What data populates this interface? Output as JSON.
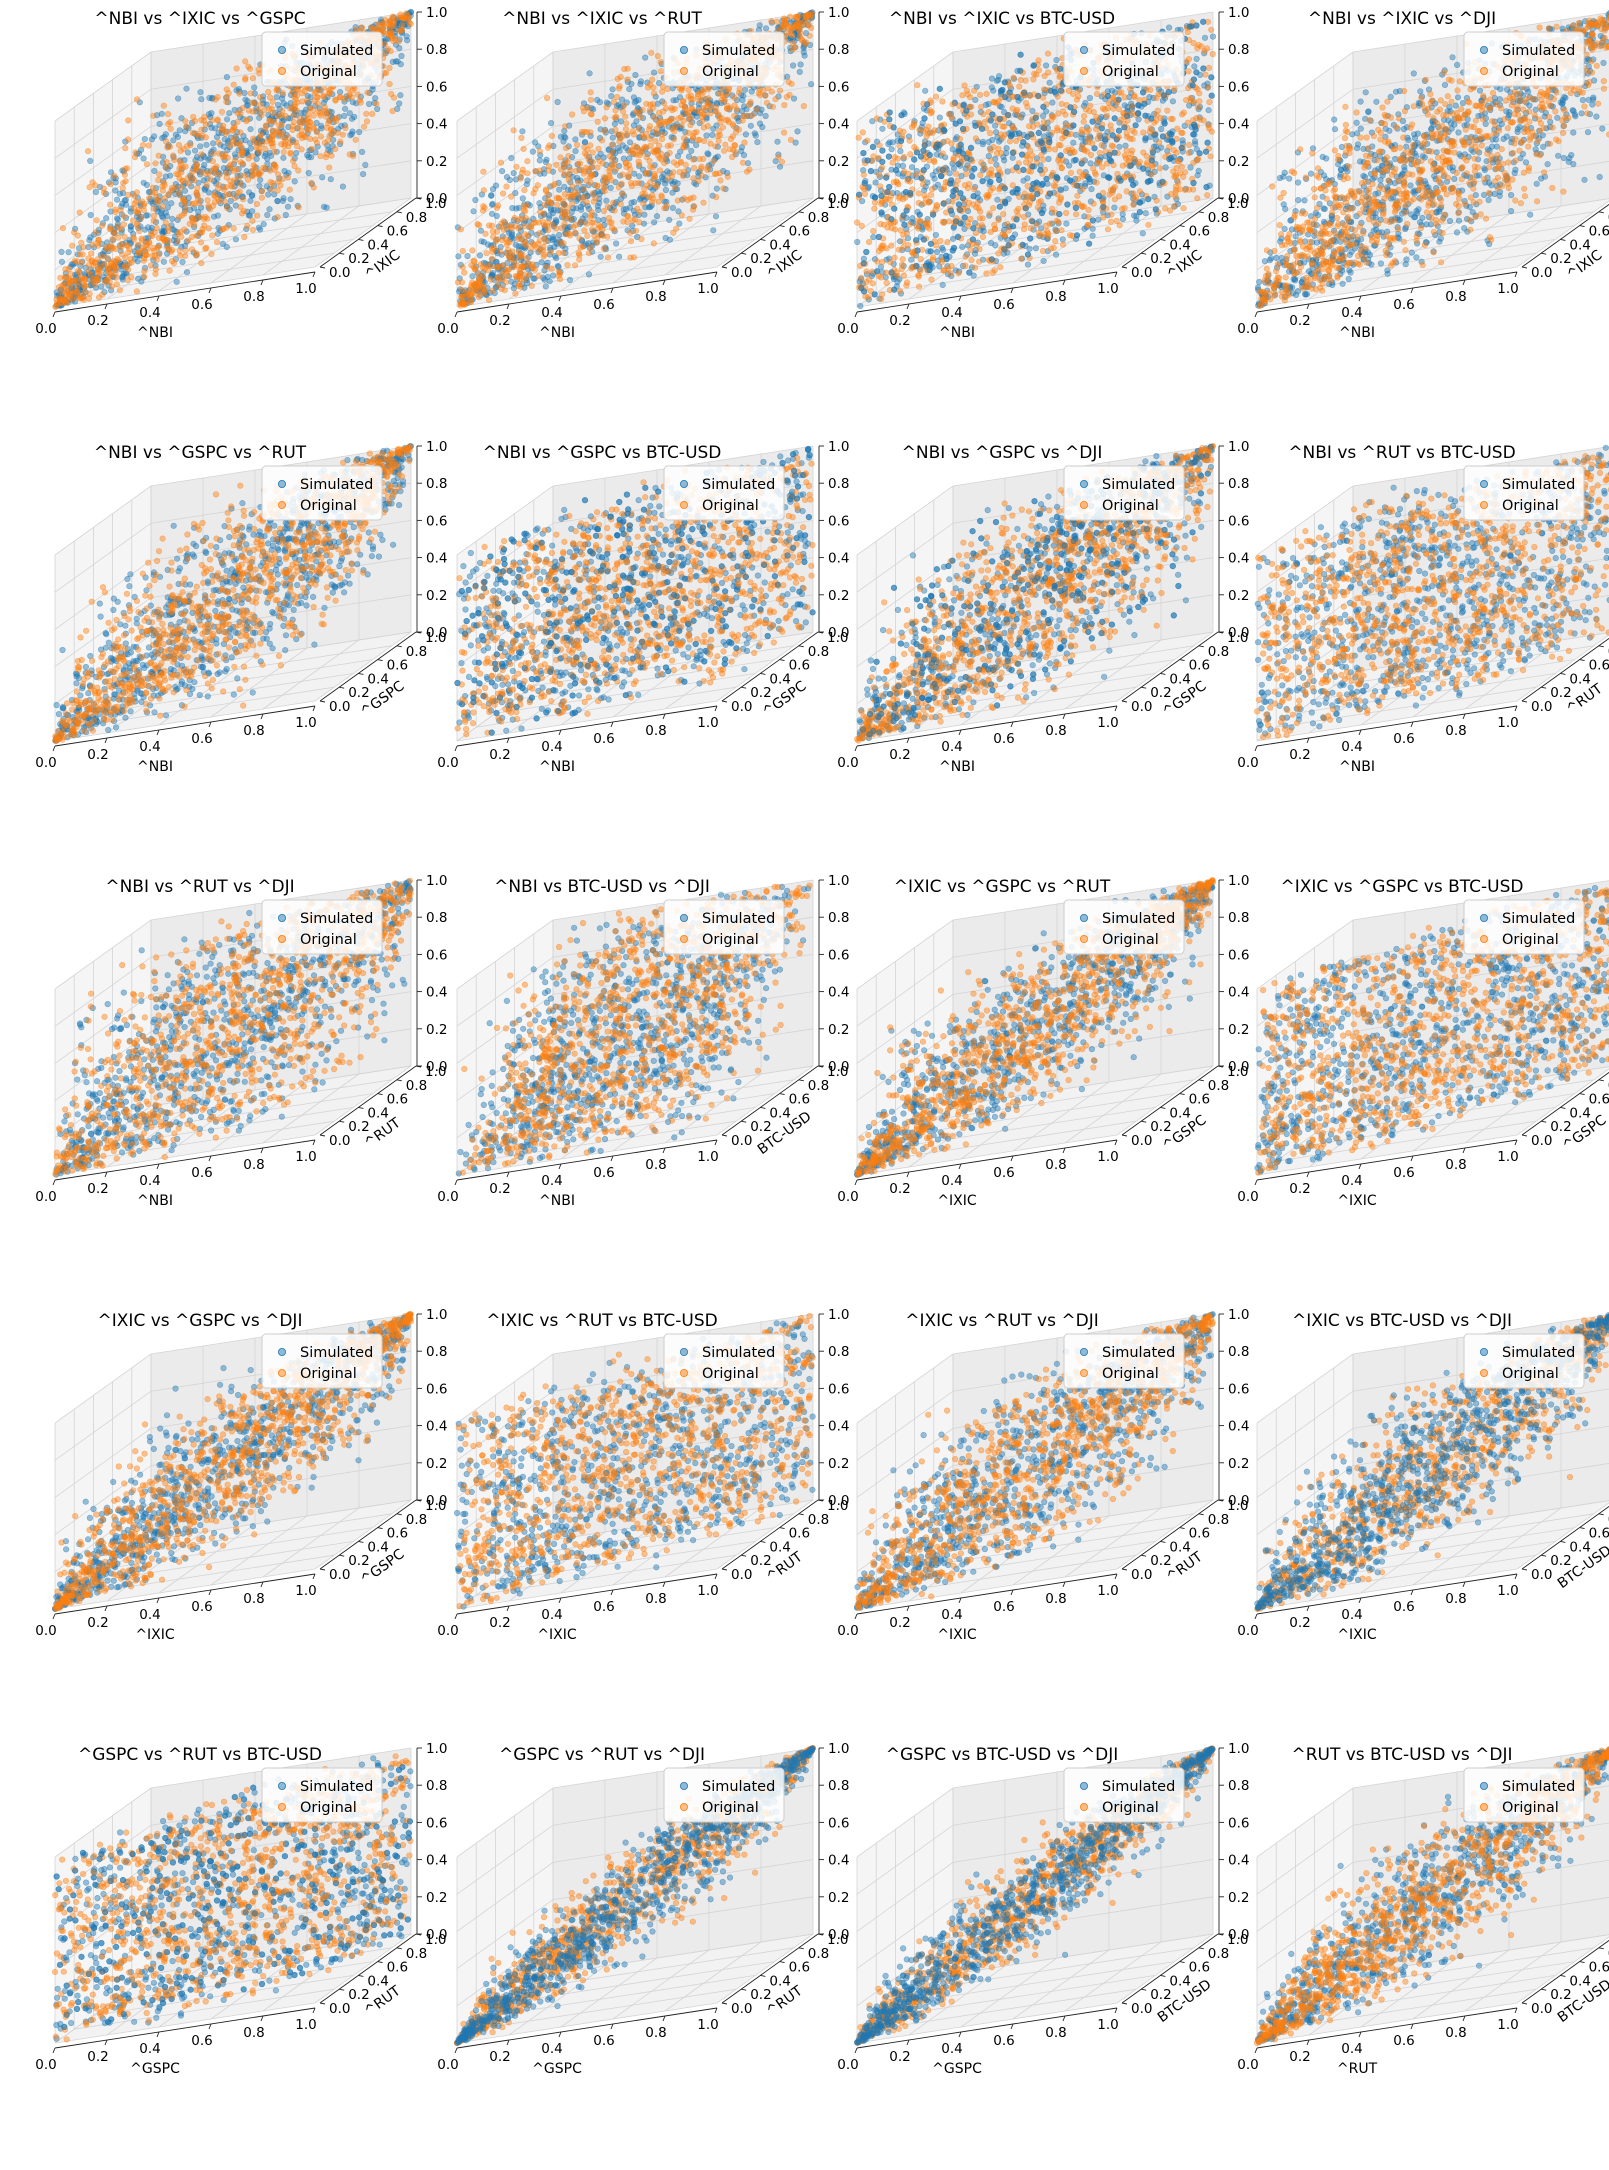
{
  "figure": {
    "legend": {
      "placement": "top-right",
      "entries": [
        "Simulated",
        "Original"
      ]
    },
    "colors": {
      "simulated": "#1f77b4",
      "original": "#ff7f0e"
    },
    "tick_labels": {
      "x": [
        "0.0",
        "0.2",
        "0.4",
        "0.6",
        "0.8",
        "1.0"
      ],
      "y": [
        "0.0",
        "0.2",
        "0.4",
        "0.6",
        "0.8",
        "1.0"
      ],
      "z": [
        "0.0",
        "0.2",
        "0.4",
        "0.6",
        "0.8",
        "1.0"
      ]
    }
  },
  "chart_data": [
    {
      "type": "scatter",
      "title": "^NBI vs ^IXIC vs ^GSPC",
      "xlabel": "^NBI",
      "ylabel": "^IXIC",
      "zlabel": "",
      "xlim": [
        0,
        1
      ],
      "ylim": [
        0,
        1
      ],
      "zlim": [
        0,
        1
      ],
      "series": [
        {
          "name": "Simulated"
        },
        {
          "name": "Original"
        }
      ],
      "dependence": [
        0.8,
        0.8
      ],
      "overlay": "original"
    },
    {
      "type": "scatter",
      "title": "^NBI vs ^IXIC vs ^RUT",
      "xlabel": "^NBI",
      "ylabel": "^IXIC",
      "zlabel": "",
      "xlim": [
        0,
        1
      ],
      "ylim": [
        0,
        1
      ],
      "zlim": [
        0,
        1
      ],
      "series": [
        {
          "name": "Simulated"
        },
        {
          "name": "Original"
        }
      ],
      "dependence": [
        0.8,
        0.75
      ],
      "overlay": "original"
    },
    {
      "type": "scatter",
      "title": "^NBI vs ^IXIC vs BTC-USD",
      "xlabel": "^NBI",
      "ylabel": "^IXIC",
      "zlabel": "",
      "xlim": [
        0,
        1
      ],
      "ylim": [
        0,
        1
      ],
      "zlim": [
        0,
        1
      ],
      "series": [
        {
          "name": "Simulated"
        },
        {
          "name": "Original"
        }
      ],
      "dependence": [
        0.8,
        0.1
      ],
      "overlay": "mixed"
    },
    {
      "type": "scatter",
      "title": "^NBI vs ^IXIC vs ^DJI",
      "xlabel": "^NBI",
      "ylabel": "^IXIC",
      "zlabel": "",
      "xlim": [
        0,
        1
      ],
      "ylim": [
        0,
        1
      ],
      "zlim": [
        0,
        1
      ],
      "series": [
        {
          "name": "Simulated"
        },
        {
          "name": "Original"
        }
      ],
      "dependence": [
        0.8,
        0.7
      ],
      "overlay": "original"
    },
    {
      "type": "scatter",
      "title": "^NBI vs ^GSPC vs ^RUT",
      "xlabel": "^NBI",
      "ylabel": "^GSPC",
      "zlabel": "",
      "xlim": [
        0,
        1
      ],
      "ylim": [
        0,
        1
      ],
      "zlim": [
        0,
        1
      ],
      "series": [
        {
          "name": "Simulated"
        },
        {
          "name": "Original"
        }
      ],
      "dependence": [
        0.7,
        0.8
      ],
      "overlay": "original"
    },
    {
      "type": "scatter",
      "title": "^NBI vs ^GSPC vs BTC-USD",
      "xlabel": "^NBI",
      "ylabel": "^GSPC",
      "zlabel": "",
      "xlim": [
        0,
        1
      ],
      "ylim": [
        0,
        1
      ],
      "zlim": [
        0,
        1
      ],
      "series": [
        {
          "name": "Simulated"
        },
        {
          "name": "Original"
        }
      ],
      "dependence": [
        0.7,
        0.1
      ],
      "overlay": "mixed"
    },
    {
      "type": "scatter",
      "title": "^NBI vs ^GSPC vs ^DJI",
      "xlabel": "^NBI",
      "ylabel": "^GSPC",
      "zlabel": "",
      "xlim": [
        0,
        1
      ],
      "ylim": [
        0,
        1
      ],
      "zlim": [
        0,
        1
      ],
      "series": [
        {
          "name": "Simulated"
        },
        {
          "name": "Original"
        }
      ],
      "dependence": [
        0.7,
        0.75
      ],
      "overlay": "mixed"
    },
    {
      "type": "scatter",
      "title": "^NBI vs ^RUT vs BTC-USD",
      "xlabel": "^NBI",
      "ylabel": "^RUT",
      "zlabel": "",
      "xlim": [
        0,
        1
      ],
      "ylim": [
        0,
        1
      ],
      "zlim": [
        0,
        1
      ],
      "series": [
        {
          "name": "Simulated"
        },
        {
          "name": "Original"
        }
      ],
      "dependence": [
        0.65,
        0.1
      ],
      "overlay": "original"
    },
    {
      "type": "scatter",
      "title": "^NBI vs ^RUT vs ^DJI",
      "xlabel": "^NBI",
      "ylabel": "^RUT",
      "zlabel": "",
      "xlim": [
        0,
        1
      ],
      "ylim": [
        0,
        1
      ],
      "zlim": [
        0,
        1
      ],
      "series": [
        {
          "name": "Simulated"
        },
        {
          "name": "Original"
        }
      ],
      "dependence": [
        0.65,
        0.65
      ],
      "overlay": "original"
    },
    {
      "type": "scatter",
      "title": "^NBI vs BTC-USD vs ^DJI",
      "xlabel": "^NBI",
      "ylabel": "BTC-USD",
      "zlabel": "",
      "xlim": [
        0,
        1
      ],
      "ylim": [
        0,
        1
      ],
      "zlim": [
        0,
        1
      ],
      "series": [
        {
          "name": "Simulated"
        },
        {
          "name": "Original"
        }
      ],
      "dependence": [
        0.1,
        0.65
      ],
      "overlay": "original"
    },
    {
      "type": "scatter",
      "title": "^IXIC vs ^GSPC vs ^RUT",
      "xlabel": "^IXIC",
      "ylabel": "^GSPC",
      "zlabel": "",
      "xlim": [
        0,
        1
      ],
      "ylim": [
        0,
        1
      ],
      "zlim": [
        0,
        1
      ],
      "series": [
        {
          "name": "Simulated"
        },
        {
          "name": "Original"
        }
      ],
      "dependence": [
        0.9,
        0.85
      ],
      "overlay": "original"
    },
    {
      "type": "scatter",
      "title": "^IXIC vs ^GSPC vs BTC-USD",
      "xlabel": "^IXIC",
      "ylabel": "^GSPC",
      "zlabel": "",
      "xlim": [
        0,
        1
      ],
      "ylim": [
        0,
        1
      ],
      "zlim": [
        0,
        1
      ],
      "series": [
        {
          "name": "Simulated"
        },
        {
          "name": "Original"
        }
      ],
      "dependence": [
        0.9,
        0.1
      ],
      "overlay": "original"
    },
    {
      "type": "scatter",
      "title": "^IXIC vs ^GSPC vs ^DJI",
      "xlabel": "^IXIC",
      "ylabel": "^GSPC",
      "zlabel": "",
      "xlim": [
        0,
        1
      ],
      "ylim": [
        0,
        1
      ],
      "zlim": [
        0,
        1
      ],
      "series": [
        {
          "name": "Simulated"
        },
        {
          "name": "Original"
        }
      ],
      "dependence": [
        0.9,
        0.85
      ],
      "overlay": "original"
    },
    {
      "type": "scatter",
      "title": "^IXIC vs ^RUT vs BTC-USD",
      "xlabel": "^IXIC",
      "ylabel": "^RUT",
      "zlabel": "",
      "xlim": [
        0,
        1
      ],
      "ylim": [
        0,
        1
      ],
      "zlim": [
        0,
        1
      ],
      "series": [
        {
          "name": "Simulated"
        },
        {
          "name": "Original"
        }
      ],
      "dependence": [
        0.8,
        0.1
      ],
      "overlay": "original"
    },
    {
      "type": "scatter",
      "title": "^IXIC vs ^RUT vs ^DJI",
      "xlabel": "^IXIC",
      "ylabel": "^RUT",
      "zlabel": "",
      "xlim": [
        0,
        1
      ],
      "ylim": [
        0,
        1
      ],
      "zlim": [
        0,
        1
      ],
      "series": [
        {
          "name": "Simulated"
        },
        {
          "name": "Original"
        }
      ],
      "dependence": [
        0.8,
        0.8
      ],
      "overlay": "original"
    },
    {
      "type": "scatter",
      "title": "^IXIC vs BTC-USD vs ^DJI",
      "xlabel": "^IXIC",
      "ylabel": "BTC-USD",
      "zlabel": "",
      "xlim": [
        0,
        1
      ],
      "ylim": [
        0,
        1
      ],
      "zlim": [
        0,
        1
      ],
      "series": [
        {
          "name": "Simulated"
        },
        {
          "name": "Original"
        }
      ],
      "dependence": [
        0.85,
        0.85
      ],
      "overlay": "simulated"
    },
    {
      "type": "scatter",
      "title": "^GSPC vs ^RUT vs BTC-USD",
      "xlabel": "^GSPC",
      "ylabel": "^RUT",
      "zlabel": "",
      "xlim": [
        0,
        1
      ],
      "ylim": [
        0,
        1
      ],
      "zlim": [
        0,
        1
      ],
      "series": [
        {
          "name": "Simulated"
        },
        {
          "name": "Original"
        }
      ],
      "dependence": [
        0.85,
        0.05
      ],
      "overlay": "mixed"
    },
    {
      "type": "scatter",
      "title": "^GSPC vs ^RUT vs ^DJI",
      "xlabel": "^GSPC",
      "ylabel": "^RUT",
      "zlabel": "",
      "xlim": [
        0,
        1
      ],
      "ylim": [
        0,
        1
      ],
      "zlim": [
        0,
        1
      ],
      "series": [
        {
          "name": "Simulated"
        },
        {
          "name": "Original"
        }
      ],
      "dependence": [
        0.95,
        0.95
      ],
      "overlay": "simulated"
    },
    {
      "type": "scatter",
      "title": "^GSPC vs BTC-USD vs ^DJI",
      "xlabel": "^GSPC",
      "ylabel": "BTC-USD",
      "zlabel": "",
      "xlim": [
        0,
        1
      ],
      "ylim": [
        0,
        1
      ],
      "zlim": [
        0,
        1
      ],
      "series": [
        {
          "name": "Simulated"
        },
        {
          "name": "Original"
        }
      ],
      "dependence": [
        0.95,
        0.95
      ],
      "overlay": "simulated"
    },
    {
      "type": "scatter",
      "title": "^RUT vs BTC-USD vs ^DJI",
      "xlabel": "^RUT",
      "ylabel": "BTC-USD",
      "zlabel": "",
      "xlim": [
        0,
        1
      ],
      "ylim": [
        0,
        1
      ],
      "zlim": [
        0,
        1
      ],
      "series": [
        {
          "name": "Simulated"
        },
        {
          "name": "Original"
        }
      ],
      "dependence": [
        0.9,
        0.9
      ],
      "overlay": "original"
    }
  ]
}
